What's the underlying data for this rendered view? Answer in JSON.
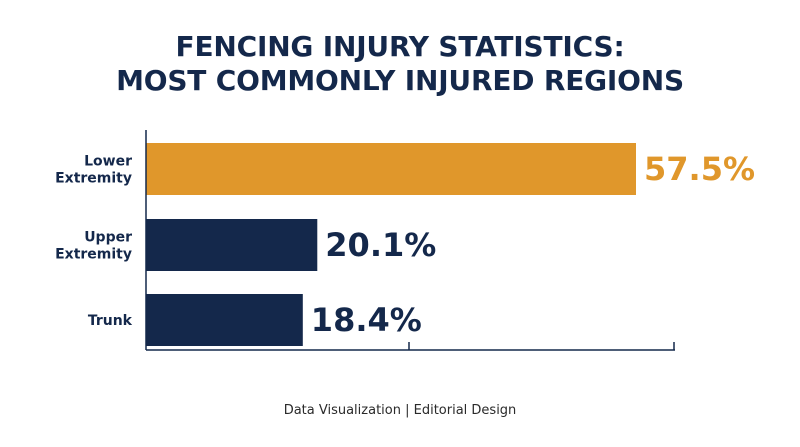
{
  "chart_data": {
    "type": "bar",
    "orientation": "horizontal",
    "title": "FENCING INJURY STATISTICS: MOST COMMONLY INJURED REGIONS",
    "title_lines": [
      "FENCING INJURY STATISTICS:",
      "MOST COMMONLY INJURED REGIONS"
    ],
    "categories": [
      {
        "lines": [
          "Lower",
          "Extremity"
        ]
      },
      {
        "lines": [
          "Upper",
          "Extremity"
        ]
      },
      {
        "lines": [
          "Trunk"
        ]
      }
    ],
    "values": [
      57.5,
      20.1,
      18.4
    ],
    "value_labels": [
      "57.5%",
      "20.1%",
      "18.4%"
    ],
    "xlim": [
      0,
      60
    ],
    "bar_colors": [
      "#e0972b",
      "#14284b",
      "#14284b"
    ],
    "value_label_colors": [
      "#e0972b",
      "#14284b",
      "#14284b"
    ],
    "xlabel": "",
    "ylabel": "",
    "grid": false,
    "legend": "none"
  },
  "footer": "Data Visualization | Editorial Design",
  "colors": {
    "axis": "#14284b",
    "title": "#14284b",
    "accent": "#e0972b"
  }
}
